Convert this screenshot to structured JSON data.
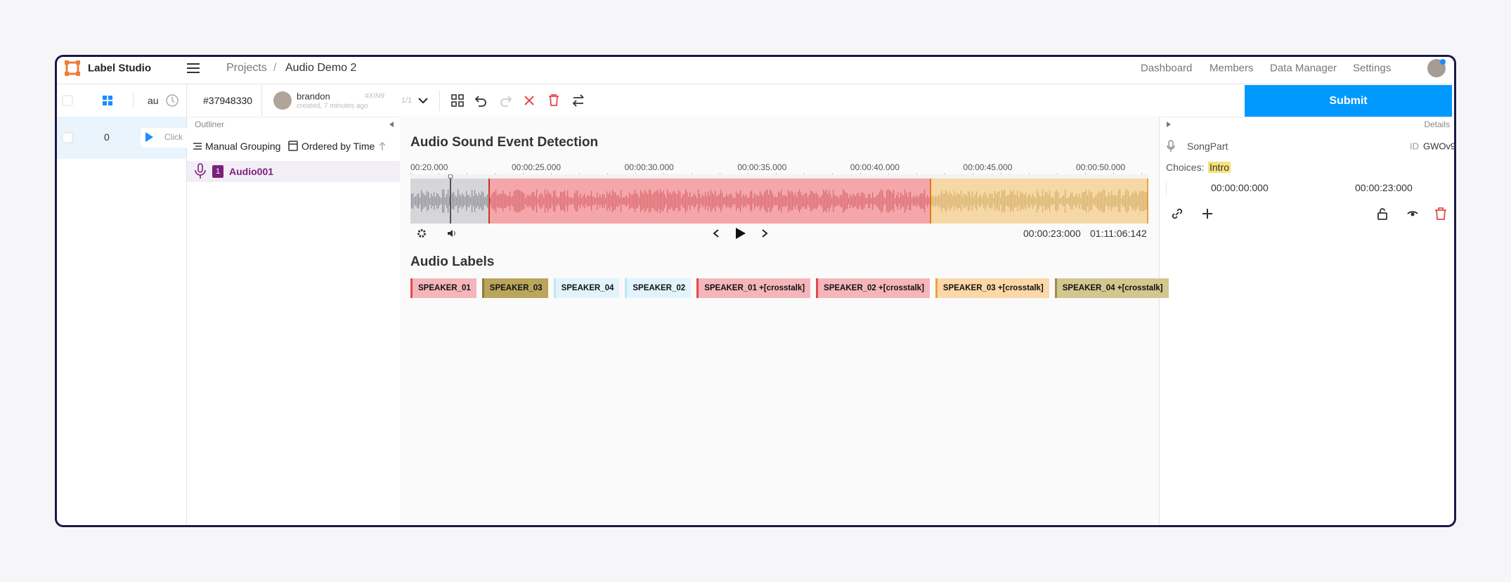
{
  "header": {
    "logo": "Label Studio",
    "breadcrumb": [
      "Projects",
      "/",
      "Audio Demo 2"
    ],
    "nav": [
      "Dashboard",
      "Members",
      "Data Manager",
      "Settings"
    ]
  },
  "task_list": {
    "column": "au",
    "rows": [
      {
        "id": "0",
        "text": "Click t"
      }
    ]
  },
  "toolbar": {
    "task_id": "#37948330",
    "user": "brandon",
    "user_id": "#XIN9",
    "meta": "created, 7 minutes ago",
    "pager": "1/1",
    "submit": "Submit"
  },
  "outliner": {
    "title": "Outliner",
    "grouping": "Manual Grouping",
    "ordering": "Ordered by Time",
    "items": [
      {
        "index": "1",
        "label": "Audio001"
      }
    ]
  },
  "main": {
    "title": "Audio Sound Event Detection",
    "timeline": [
      "00:20.000",
      "00:00:25.000",
      "00:00:30.000",
      "00:00:35.000",
      "00:00:40.000",
      "00:00:45.000",
      "00:00:50.000"
    ],
    "current_time": "00:00:23:000",
    "duration": "01:11:06:142",
    "labels_title": "Audio Labels",
    "labels": [
      {
        "text": "SPEAKER_01",
        "color": "#f4b6ba",
        "border": "#e5484d"
      },
      {
        "text": "SPEAKER_03",
        "color": "#b9a65c",
        "border": "#8f7d35"
      },
      {
        "text": "SPEAKER_04",
        "color": "#e2f4fb",
        "border": "#bfe6f4"
      },
      {
        "text": "SPEAKER_02",
        "color": "#e2f4fb",
        "border": "#bfe6f4"
      },
      {
        "text": "SPEAKER_01 +[crosstalk]",
        "color": "#f4b6ba",
        "border": "#e5484d"
      },
      {
        "text": "SPEAKER_02 +[crosstalk]",
        "color": "#f4b6ba",
        "border": "#e5484d"
      },
      {
        "text": "SPEAKER_03 +[crosstalk]",
        "color": "#fcd8a8",
        "border": "#f0a040"
      },
      {
        "text": "SPEAKER_04 +[crosstalk]",
        "color": "#d3c68f",
        "border": "#9e8d47"
      }
    ]
  },
  "details": {
    "title": "Details",
    "region": "SongPart",
    "id_label": "ID",
    "region_id": "GWOv9",
    "choices_label": "Choices:",
    "choice": "Intro",
    "start": "00:00:00:000",
    "end": "00:00:23:000"
  }
}
